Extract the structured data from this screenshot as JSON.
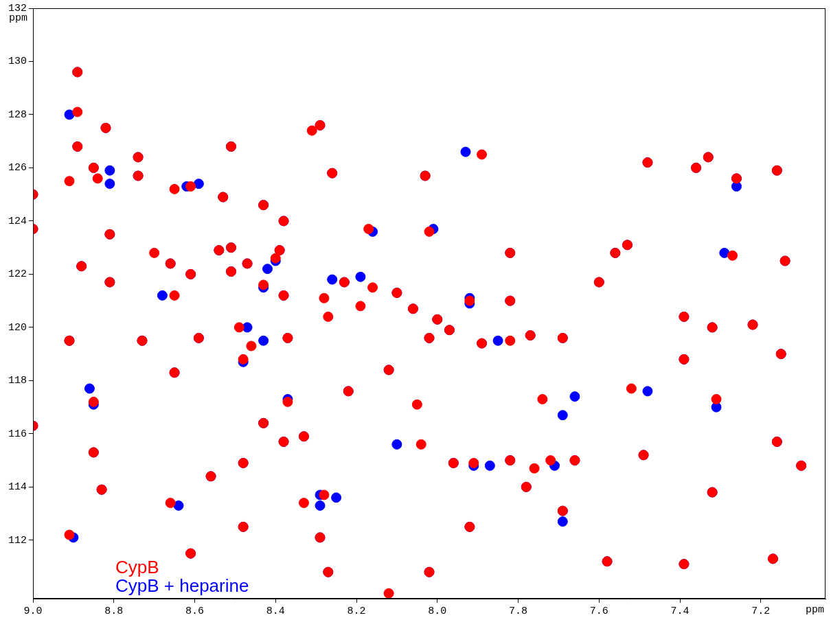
{
  "chart_data": {
    "type": "scatter",
    "x_label": "ppm",
    "y_label": "ppm",
    "xlim": [
      9.0,
      7.04
    ],
    "xticks": [
      {
        "value": 9.0,
        "label": "9.0"
      },
      8.8,
      8.6,
      8.4,
      8.2,
      {
        "value": 8.0,
        "label": "8.0"
      },
      7.8,
      7.6,
      7.4,
      7.2
    ],
    "ylim": [
      132,
      109.8
    ],
    "yticks": [
      112,
      114,
      116,
      118,
      120,
      122,
      124,
      126,
      128,
      130,
      132
    ],
    "grid": false,
    "legend": "lower left",
    "marker": "circle",
    "series": [
      {
        "name": "CypB",
        "color": "#ff0000",
        "x": [
          8.12,
          8.27,
          8.02,
          7.58,
          7.39,
          7.17,
          8.61,
          8.91,
          8.29,
          8.48,
          7.92,
          7.69,
          8.66,
          8.33,
          8.28,
          7.32,
          8.83,
          8.56,
          7.78,
          8.85,
          8.48,
          7.96,
          7.91,
          7.82,
          7.76,
          7.72,
          7.66,
          7.49,
          7.1,
          8.38,
          8.33,
          8.04,
          7.16,
          9.0,
          8.43,
          8.85,
          7.74,
          8.05,
          8.37,
          8.22,
          7.52,
          7.31,
          8.65,
          8.12,
          7.39,
          8.48,
          8.91,
          8.73,
          8.59,
          8.46,
          8.49,
          8.37,
          8.02,
          7.97,
          7.89,
          7.82,
          7.77,
          7.69,
          7.15,
          7.39,
          7.32,
          7.22,
          8.19,
          8.27,
          8.0,
          8.06,
          7.92,
          7.82,
          8.1,
          8.65,
          8.38,
          8.28,
          8.43,
          8.16,
          8.23,
          7.6,
          8.81,
          8.66,
          8.61,
          8.7,
          8.51,
          8.47,
          8.54,
          8.51,
          8.4,
          8.39,
          8.88,
          7.82,
          7.27,
          7.14,
          7.56,
          7.53,
          8.81,
          8.17,
          8.02,
          9.0,
          8.38,
          8.43,
          9.0,
          8.53,
          8.65,
          8.61,
          8.91,
          8.85,
          8.84,
          8.74,
          8.74,
          8.26,
          8.03,
          7.89,
          7.48,
          7.36,
          7.33,
          7.26,
          7.16,
          8.89,
          8.51,
          8.82,
          8.89,
          8.31,
          8.29,
          8.89
        ],
        "values": [
          110.0,
          110.8,
          110.8,
          111.2,
          111.1,
          111.3,
          111.5,
          112.2,
          112.1,
          112.5,
          112.5,
          113.1,
          113.4,
          113.4,
          113.7,
          113.8,
          113.9,
          114.4,
          114.0,
          115.3,
          114.9,
          114.9,
          114.9,
          115.0,
          114.7,
          115.0,
          115.0,
          115.2,
          114.8,
          115.7,
          115.9,
          115.6,
          115.7,
          116.3,
          116.4,
          117.2,
          117.3,
          117.1,
          117.2,
          117.6,
          117.7,
          117.3,
          118.3,
          118.4,
          118.8,
          118.8,
          119.5,
          119.5,
          119.6,
          119.3,
          120.0,
          119.6,
          119.6,
          119.9,
          119.4,
          119.5,
          119.7,
          119.6,
          119.0,
          120.4,
          120.0,
          120.1,
          120.8,
          120.4,
          120.3,
          120.7,
          121.0,
          121.0,
          121.3,
          121.2,
          121.2,
          121.1,
          121.6,
          121.5,
          121.7,
          121.7,
          121.7,
          122.4,
          122.0,
          122.8,
          122.1,
          122.4,
          122.9,
          123.0,
          122.6,
          122.9,
          122.3,
          122.8,
          122.7,
          122.5,
          122.8,
          123.1,
          123.5,
          123.7,
          123.6,
          123.7,
          124.0,
          124.6,
          125.0,
          124.9,
          125.2,
          125.3,
          125.5,
          126.0,
          125.6,
          125.7,
          126.4,
          125.8,
          125.7,
          126.5,
          126.2,
          126.0,
          126.4,
          125.6,
          125.9,
          126.8,
          126.8,
          127.5,
          128.1,
          127.4,
          127.6,
          129.6
        ]
      },
      {
        "name": "CypB + heparine",
        "color": "#0000ff",
        "x": [
          8.27,
          8.02,
          7.58,
          7.39,
          7.17,
          8.61,
          8.9,
          8.29,
          8.48,
          7.92,
          7.69,
          7.69,
          8.64,
          8.29,
          8.29,
          8.25,
          7.32,
          8.83,
          8.56,
          7.78,
          8.85,
          8.48,
          7.96,
          7.91,
          7.87,
          7.82,
          7.71,
          7.66,
          7.49,
          7.1,
          8.38,
          8.33,
          8.1,
          7.16,
          9.0,
          8.43,
          8.85,
          7.69,
          7.66,
          8.37,
          8.22,
          7.48,
          7.31,
          8.86,
          8.65,
          8.12,
          7.39,
          8.48,
          8.91,
          8.73,
          8.59,
          8.43,
          8.37,
          8.47,
          8.02,
          7.97,
          7.89,
          7.85,
          7.77,
          7.69,
          7.15,
          7.39,
          7.32,
          7.22,
          8.0,
          8.06,
          7.92,
          7.92,
          7.82,
          8.1,
          8.68,
          8.38,
          8.43,
          8.26,
          8.23,
          8.19,
          7.6,
          8.81,
          8.66,
          8.61,
          8.51,
          8.47,
          8.54,
          8.51,
          8.4,
          8.39,
          8.42,
          8.88,
          7.82,
          7.29,
          7.14,
          7.56,
          7.53,
          8.81,
          8.16,
          8.01,
          9.0,
          8.38,
          8.43,
          9.0,
          8.53,
          8.62,
          8.59,
          8.81,
          8.81,
          8.85,
          8.74,
          8.74,
          8.26,
          8.03,
          7.93,
          7.48,
          7.36,
          7.33,
          7.26,
          7.26,
          7.16,
          8.89,
          8.51,
          8.82,
          8.91,
          8.29,
          8.89
        ],
        "values": [
          110.8,
          110.8,
          111.2,
          111.1,
          111.3,
          111.5,
          112.1,
          112.1,
          112.5,
          112.5,
          113.1,
          112.7,
          113.3,
          113.3,
          113.7,
          113.6,
          113.8,
          113.9,
          114.4,
          114.0,
          115.3,
          114.9,
          114.9,
          114.8,
          114.8,
          115.0,
          114.8,
          115.0,
          115.2,
          114.8,
          115.7,
          115.9,
          115.6,
          115.7,
          116.3,
          116.4,
          117.1,
          116.7,
          117.4,
          117.3,
          117.6,
          117.6,
          117.0,
          117.7,
          118.3,
          118.4,
          118.8,
          118.7,
          119.5,
          119.5,
          119.6,
          119.5,
          119.6,
          120.0,
          119.6,
          119.9,
          119.4,
          119.5,
          119.7,
          119.6,
          119.0,
          120.4,
          120.0,
          120.1,
          120.3,
          120.7,
          120.9,
          121.1,
          121.0,
          121.3,
          121.2,
          121.2,
          121.5,
          121.8,
          121.7,
          121.9,
          121.7,
          121.7,
          122.4,
          122.0,
          122.1,
          122.4,
          122.9,
          123.0,
          122.5,
          122.9,
          122.2,
          122.3,
          122.8,
          122.8,
          122.5,
          122.8,
          123.1,
          123.5,
          123.6,
          123.7,
          123.7,
          124.0,
          124.6,
          125.0,
          124.9,
          125.3,
          125.4,
          125.4,
          125.9,
          126.0,
          125.7,
          126.4,
          125.8,
          125.7,
          126.6,
          126.2,
          126.0,
          126.4,
          125.6,
          125.3,
          125.9,
          126.8,
          126.8,
          127.5,
          128.0,
          127.6,
          129.6
        ]
      }
    ]
  }
}
